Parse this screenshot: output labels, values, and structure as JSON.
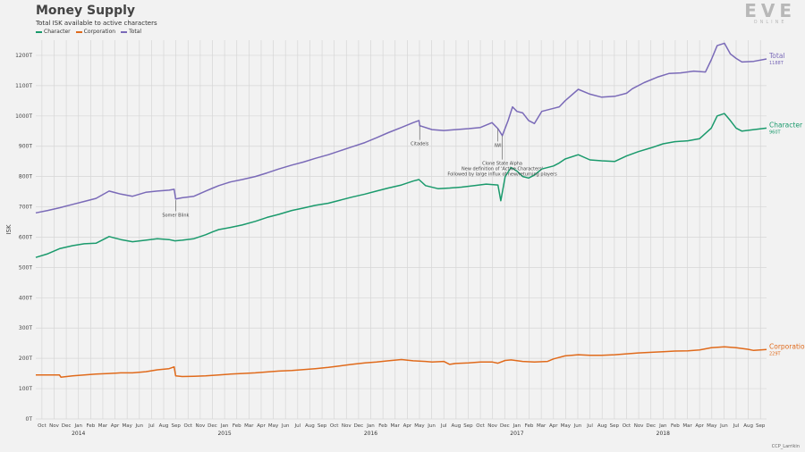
{
  "header": {
    "title": "Money Supply",
    "subtitle": "Total ISK available to active characters"
  },
  "legend": [
    {
      "label": "Character",
      "color": "#1a9a6c"
    },
    {
      "label": "Corporation",
      "color": "#e06a1b"
    },
    {
      "label": "Total",
      "color": "#7a6ab8"
    }
  ],
  "logo": {
    "big": "EVE",
    "small": "ONLINE"
  },
  "credit": "CCP_Larrikin",
  "chart_data": {
    "type": "line",
    "title": "Money Supply",
    "subtitle": "Total ISK available to active characters",
    "ylabel": "ISK",
    "ylim": [
      0,
      1250
    ],
    "yticks": [
      0,
      100,
      200,
      300,
      400,
      500,
      600,
      700,
      800,
      900,
      1000,
      1100,
      1200
    ],
    "ytick_labels": [
      "0T",
      "100T",
      "200T",
      "300T",
      "400T",
      "500T",
      "600T",
      "700T",
      "800T",
      "900T",
      "1000T",
      "1100T",
      "1200T"
    ],
    "xlim": [
      2013.708,
      2018.708
    ],
    "x_month_labels": [
      "Oct",
      "Nov",
      "Dec",
      "Jan",
      "Feb",
      "Mar",
      "Apr",
      "May",
      "Jun",
      "Jul",
      "Aug",
      "Sep",
      "Oct",
      "Nov",
      "Dec",
      "Jan",
      "Feb",
      "Mar",
      "Apr",
      "May",
      "Jun",
      "Jul",
      "Aug",
      "Sep",
      "Oct",
      "Nov",
      "Dec",
      "Jan",
      "Feb",
      "Mar",
      "Apr",
      "May",
      "Jun",
      "Jul",
      "Aug",
      "Sep",
      "Oct",
      "Nov",
      "Dec",
      "Jan",
      "Feb",
      "Mar",
      "Apr",
      "May",
      "Jun",
      "Jul",
      "Aug",
      "Sep",
      "Oct",
      "Nov",
      "Dec",
      "Jan",
      "Feb",
      "Mar",
      "Apr",
      "May",
      "Jun",
      "Jul",
      "Aug",
      "Sep"
    ],
    "x_year_labels": [
      "2014",
      "2015",
      "2016",
      "2017",
      "2018"
    ],
    "grid": true,
    "series": [
      {
        "name": "Total",
        "color": "#7a6ab8",
        "end_label": "Total",
        "end_value_label": "1188T",
        "points": [
          [
            2013.708,
            680
          ],
          [
            2013.79,
            688
          ],
          [
            2013.87,
            697
          ],
          [
            2013.96,
            708
          ],
          [
            2014.04,
            718
          ],
          [
            2014.12,
            728
          ],
          [
            2014.21,
            752
          ],
          [
            2014.29,
            742
          ],
          [
            2014.37,
            735
          ],
          [
            2014.46,
            748
          ],
          [
            2014.54,
            752
          ],
          [
            2014.62,
            755
          ],
          [
            2014.655,
            758
          ],
          [
            2014.665,
            726
          ],
          [
            2014.71,
            730
          ],
          [
            2014.79,
            735
          ],
          [
            2014.87,
            752
          ],
          [
            2014.92,
            762
          ],
          [
            2014.96,
            770
          ],
          [
            2015.04,
            782
          ],
          [
            2015.12,
            790
          ],
          [
            2015.21,
            800
          ],
          [
            2015.29,
            812
          ],
          [
            2015.37,
            825
          ],
          [
            2015.46,
            838
          ],
          [
            2015.54,
            848
          ],
          [
            2015.62,
            860
          ],
          [
            2015.71,
            872
          ],
          [
            2015.79,
            885
          ],
          [
            2015.87,
            898
          ],
          [
            2015.96,
            912
          ],
          [
            2016.04,
            928
          ],
          [
            2016.12,
            945
          ],
          [
            2016.21,
            962
          ],
          [
            2016.29,
            978
          ],
          [
            2016.33,
            985
          ],
          [
            2016.335,
            968
          ],
          [
            2016.42,
            955
          ],
          [
            2016.5,
            952
          ],
          [
            2016.58,
            955
          ],
          [
            2016.67,
            958
          ],
          [
            2016.75,
            962
          ],
          [
            2016.83,
            978
          ],
          [
            2016.87,
            958
          ],
          [
            2016.9,
            935
          ],
          [
            2016.94,
            985
          ],
          [
            2016.97,
            1030
          ],
          [
            2017.0,
            1015
          ],
          [
            2017.04,
            1010
          ],
          [
            2017.08,
            985
          ],
          [
            2017.12,
            975
          ],
          [
            2017.17,
            1015
          ],
          [
            2017.25,
            1025
          ],
          [
            2017.29,
            1030
          ],
          [
            2017.33,
            1050
          ],
          [
            2017.42,
            1088
          ],
          [
            2017.5,
            1072
          ],
          [
            2017.58,
            1062
          ],
          [
            2017.67,
            1065
          ],
          [
            2017.75,
            1075
          ],
          [
            2017.79,
            1090
          ],
          [
            2017.87,
            1110
          ],
          [
            2017.96,
            1128
          ],
          [
            2018.04,
            1140
          ],
          [
            2018.12,
            1142
          ],
          [
            2018.21,
            1148
          ],
          [
            2018.29,
            1145
          ],
          [
            2018.33,
            1185
          ],
          [
            2018.37,
            1232
          ],
          [
            2018.42,
            1240
          ],
          [
            2018.46,
            1205
          ],
          [
            2018.5,
            1190
          ],
          [
            2018.54,
            1178
          ],
          [
            2018.62,
            1180
          ],
          [
            2018.708,
            1188
          ]
        ]
      },
      {
        "name": "Character",
        "color": "#1a9a6c",
        "end_label": "Character",
        "end_value_label": "960T",
        "points": [
          [
            2013.708,
            533
          ],
          [
            2013.79,
            545
          ],
          [
            2013.87,
            562
          ],
          [
            2013.96,
            572
          ],
          [
            2014.04,
            578
          ],
          [
            2014.12,
            580
          ],
          [
            2014.21,
            602
          ],
          [
            2014.29,
            592
          ],
          [
            2014.37,
            585
          ],
          [
            2014.46,
            590
          ],
          [
            2014.54,
            595
          ],
          [
            2014.62,
            592
          ],
          [
            2014.66,
            588
          ],
          [
            2014.71,
            590
          ],
          [
            2014.79,
            595
          ],
          [
            2014.87,
            608
          ],
          [
            2014.92,
            618
          ],
          [
            2014.96,
            625
          ],
          [
            2015.04,
            632
          ],
          [
            2015.12,
            640
          ],
          [
            2015.21,
            652
          ],
          [
            2015.29,
            665
          ],
          [
            2015.37,
            675
          ],
          [
            2015.46,
            688
          ],
          [
            2015.54,
            696
          ],
          [
            2015.62,
            705
          ],
          [
            2015.71,
            712
          ],
          [
            2015.79,
            722
          ],
          [
            2015.87,
            732
          ],
          [
            2015.96,
            742
          ],
          [
            2016.04,
            752
          ],
          [
            2016.12,
            762
          ],
          [
            2016.21,
            772
          ],
          [
            2016.29,
            785
          ],
          [
            2016.33,
            790
          ],
          [
            2016.375,
            770
          ],
          [
            2016.46,
            760
          ],
          [
            2016.54,
            762
          ],
          [
            2016.62,
            765
          ],
          [
            2016.71,
            770
          ],
          [
            2016.79,
            775
          ],
          [
            2016.87,
            772
          ],
          [
            2016.89,
            720
          ],
          [
            2016.92,
            800
          ],
          [
            2016.96,
            830
          ],
          [
            2017.0,
            818
          ],
          [
            2017.04,
            800
          ],
          [
            2017.08,
            795
          ],
          [
            2017.12,
            805
          ],
          [
            2017.17,
            825
          ],
          [
            2017.25,
            835
          ],
          [
            2017.29,
            845
          ],
          [
            2017.33,
            858
          ],
          [
            2017.42,
            872
          ],
          [
            2017.5,
            855
          ],
          [
            2017.58,
            852
          ],
          [
            2017.67,
            850
          ],
          [
            2017.75,
            868
          ],
          [
            2017.83,
            882
          ],
          [
            2017.92,
            895
          ],
          [
            2018.0,
            908
          ],
          [
            2018.08,
            915
          ],
          [
            2018.17,
            918
          ],
          [
            2018.25,
            925
          ],
          [
            2018.33,
            960
          ],
          [
            2018.37,
            1000
          ],
          [
            2018.42,
            1008
          ],
          [
            2018.46,
            985
          ],
          [
            2018.5,
            960
          ],
          [
            2018.54,
            950
          ],
          [
            2018.62,
            955
          ],
          [
            2018.708,
            960
          ]
        ]
      },
      {
        "name": "Corporation",
        "color": "#e06a1b",
        "end_label": "Corporation",
        "end_value_label": "229T",
        "points": [
          [
            2013.708,
            145
          ],
          [
            2013.79,
            145
          ],
          [
            2013.87,
            145
          ],
          [
            2013.88,
            138
          ],
          [
            2013.96,
            142
          ],
          [
            2014.04,
            145
          ],
          [
            2014.12,
            148
          ],
          [
            2014.21,
            150
          ],
          [
            2014.29,
            152
          ],
          [
            2014.37,
            152
          ],
          [
            2014.46,
            156
          ],
          [
            2014.54,
            162
          ],
          [
            2014.62,
            166
          ],
          [
            2014.655,
            172
          ],
          [
            2014.665,
            142
          ],
          [
            2014.71,
            140
          ],
          [
            2014.79,
            141
          ],
          [
            2014.87,
            142
          ],
          [
            2014.96,
            145
          ],
          [
            2015.04,
            148
          ],
          [
            2015.12,
            150
          ],
          [
            2015.21,
            152
          ],
          [
            2015.29,
            155
          ],
          [
            2015.37,
            158
          ],
          [
            2015.46,
            160
          ],
          [
            2015.54,
            163
          ],
          [
            2015.62,
            166
          ],
          [
            2015.71,
            170
          ],
          [
            2015.79,
            175
          ],
          [
            2015.87,
            180
          ],
          [
            2015.96,
            185
          ],
          [
            2016.04,
            188
          ],
          [
            2016.12,
            192
          ],
          [
            2016.21,
            196
          ],
          [
            2016.29,
            192
          ],
          [
            2016.375,
            190
          ],
          [
            2016.42,
            188
          ],
          [
            2016.5,
            190
          ],
          [
            2016.54,
            180
          ],
          [
            2016.58,
            183
          ],
          [
            2016.67,
            185
          ],
          [
            2016.75,
            188
          ],
          [
            2016.83,
            188
          ],
          [
            2016.87,
            184
          ],
          [
            2016.92,
            193
          ],
          [
            2016.96,
            195
          ],
          [
            2017.04,
            190
          ],
          [
            2017.12,
            188
          ],
          [
            2017.21,
            190
          ],
          [
            2017.25,
            198
          ],
          [
            2017.33,
            208
          ],
          [
            2017.42,
            212
          ],
          [
            2017.5,
            210
          ],
          [
            2017.58,
            210
          ],
          [
            2017.67,
            212
          ],
          [
            2017.75,
            215
          ],
          [
            2017.83,
            218
          ],
          [
            2017.92,
            220
          ],
          [
            2018.0,
            222
          ],
          [
            2018.08,
            224
          ],
          [
            2018.17,
            225
          ],
          [
            2018.25,
            228
          ],
          [
            2018.33,
            235
          ],
          [
            2018.42,
            238
          ],
          [
            2018.5,
            235
          ],
          [
            2018.58,
            230
          ],
          [
            2018.62,
            226
          ],
          [
            2018.708,
            229
          ]
        ]
      }
    ],
    "annotations": [
      {
        "name": "somer-blink",
        "lines": [
          "Somer Blink"
        ],
        "x": 2014.665,
        "y": 722,
        "label_y": 680
      },
      {
        "name": "citadels",
        "lines": [
          "Citadels"
        ],
        "x": 2016.335,
        "y": 968,
        "label_y": 915
      },
      {
        "name": "iwi",
        "lines": [
          "IWI"
        ],
        "x": 2016.87,
        "y": 958,
        "label_y": 910
      },
      {
        "name": "clone-state-alpha",
        "lines": [
          "Clone State Alpha",
          "New definition of 'Active Characters'",
          "Followed by large influx of new/returning players"
        ],
        "x": 2016.9,
        "y": 935,
        "label_y": 850
      }
    ]
  }
}
